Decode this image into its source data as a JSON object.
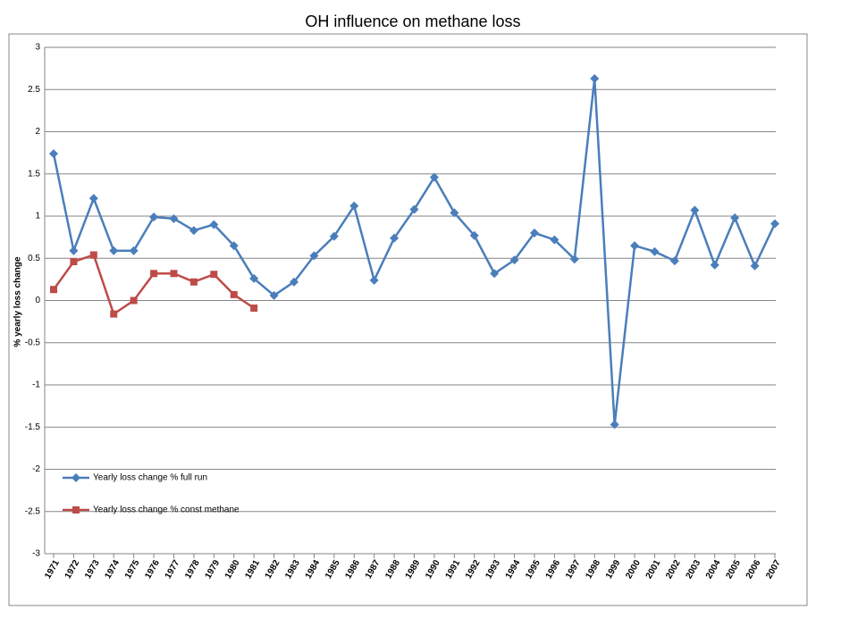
{
  "chart_data": {
    "type": "line",
    "title": "OH influence on methane loss",
    "y_label": "% yearly loss change",
    "categories": [
      "1971",
      "1972",
      "1973",
      "1974",
      "1975",
      "1976",
      "1977",
      "1978",
      "1979",
      "1980",
      "1981",
      "1982",
      "1983",
      "1984",
      "1985",
      "1986",
      "1987",
      "1988",
      "1989",
      "1990",
      "1991",
      "1992",
      "1993",
      "1994",
      "1995",
      "1996",
      "1997",
      "1998",
      "1999",
      "2000",
      "2001",
      "2002",
      "2003",
      "2004",
      "2005",
      "2006",
      "2007"
    ],
    "series": [
      {
        "name": "Yearly loss change % full run",
        "color": "#4a7ebb",
        "marker": "diamond",
        "values": [
          1.74,
          0.59,
          1.21,
          0.59,
          0.59,
          0.99,
          0.97,
          0.83,
          0.9,
          0.65,
          0.26,
          0.06,
          0.22,
          0.53,
          0.76,
          1.12,
          0.24,
          0.74,
          1.08,
          1.46,
          1.04,
          0.77,
          0.32,
          0.48,
          0.8,
          0.72,
          0.49,
          2.63,
          -1.47,
          0.65,
          0.58,
          0.47,
          1.07,
          0.42,
          0.98,
          0.41,
          0.91
        ]
      },
      {
        "name": "Yearly loss change % const methane",
        "color": "#be4b48",
        "marker": "square",
        "values": [
          0.13,
          0.46,
          0.54,
          -0.16,
          0.0,
          0.32,
          0.32,
          0.22,
          0.31,
          0.07,
          -0.09,
          null,
          null,
          null,
          null,
          null,
          null,
          null,
          null,
          null,
          null,
          null,
          null,
          null,
          null,
          null,
          null,
          null,
          null,
          null,
          null,
          null,
          null,
          null,
          null,
          null,
          null
        ]
      }
    ],
    "ylim": [
      -3,
      3
    ],
    "yticks": [
      -3,
      -2.5,
      -2,
      -1.5,
      -1,
      -0.5,
      0,
      0.5,
      1,
      1.5,
      2,
      2.5,
      3
    ],
    "grid": true,
    "legend": "lower left"
  }
}
